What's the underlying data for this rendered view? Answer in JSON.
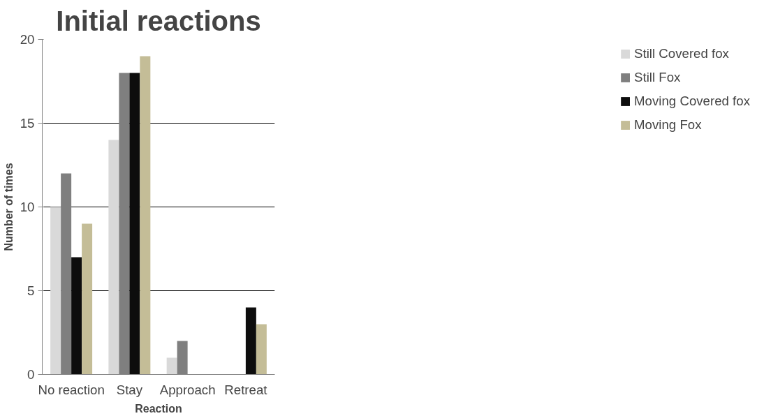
{
  "chart_data": {
    "type": "bar",
    "title": "Initial reactions",
    "xlabel": "Reaction",
    "ylabel": "Number of times",
    "categories": [
      "No reaction",
      "Stay",
      "Approach",
      "Retreat"
    ],
    "series": [
      {
        "name": "Still Covered fox",
        "color": "#d9d9d9",
        "values": [
          10,
          14,
          1,
          0
        ]
      },
      {
        "name": "Still Fox",
        "color": "#7f7f7f",
        "values": [
          12,
          18,
          2,
          0
        ]
      },
      {
        "name": "Moving Covered fox",
        "color": "#0d0d0d",
        "values": [
          7,
          18,
          0,
          4
        ]
      },
      {
        "name": "Moving Fox",
        "color": "#c4bd97",
        "values": [
          9,
          19,
          0,
          3
        ]
      }
    ],
    "ylim": [
      0,
      20
    ],
    "yticks": [
      0,
      5,
      10,
      15,
      20
    ],
    "grid": "y",
    "legend": "right"
  }
}
